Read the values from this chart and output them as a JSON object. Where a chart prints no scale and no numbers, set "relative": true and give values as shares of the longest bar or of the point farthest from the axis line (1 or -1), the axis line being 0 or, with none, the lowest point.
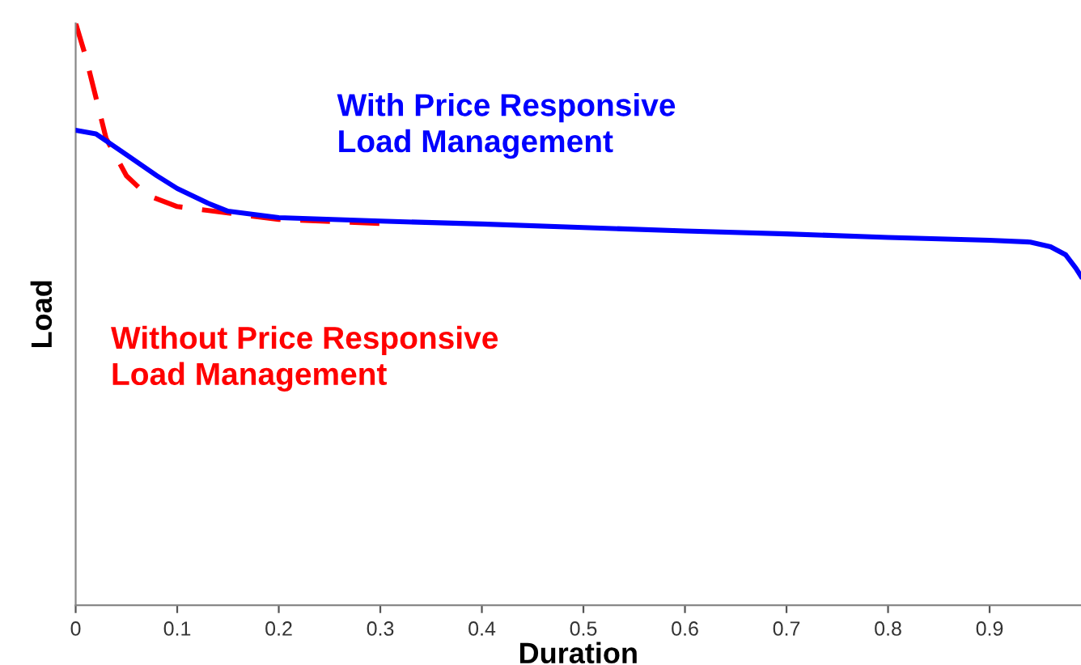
{
  "chart_data": {
    "type": "line",
    "xlabel": "Duration",
    "ylabel": "Load",
    "relative": true,
    "xlim": [
      0,
      0.99
    ],
    "xticks": [
      0,
      0.1,
      0.2,
      0.3,
      0.4,
      0.5,
      0.6,
      0.7,
      0.8,
      0.9
    ],
    "grid": false,
    "legend": false,
    "marker": "none",
    "series": [
      {
        "name": "Without Price Responsive\nLoad Management",
        "color": "#ff0000",
        "line_style": "dashed",
        "x": [
          0,
          0.01,
          0.02,
          0.03,
          0.05,
          0.07,
          0.1,
          0.15,
          0.2,
          0.3
        ],
        "values": [
          1.0,
          0.942,
          0.872,
          0.802,
          0.738,
          0.705,
          0.685,
          0.674,
          0.663,
          0.656
        ]
      },
      {
        "name": "With Price Responsive\nLoad Management",
        "color": "#0000ff",
        "line_style": "solid",
        "x": [
          0,
          0.02,
          0.05,
          0.08,
          0.1,
          0.13,
          0.15,
          0.2,
          0.3,
          0.4,
          0.5,
          0.6,
          0.7,
          0.8,
          0.9,
          0.94,
          0.96,
          0.975,
          0.985,
          0.99
        ],
        "values": [
          0.816,
          0.81,
          0.774,
          0.738,
          0.716,
          0.691,
          0.677,
          0.666,
          0.66,
          0.655,
          0.649,
          0.643,
          0.638,
          0.632,
          0.627,
          0.624,
          0.616,
          0.602,
          0.579,
          0.565
        ]
      }
    ]
  }
}
